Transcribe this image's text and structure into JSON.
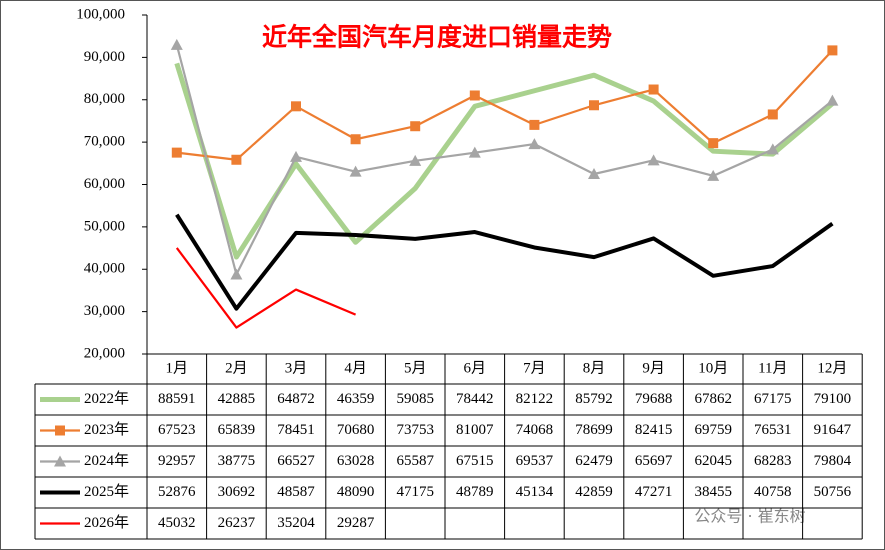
{
  "chart_data": {
    "type": "line",
    "title": "近年全国汽车月度进口销量走势",
    "categories": [
      "1月",
      "2月",
      "3月",
      "4月",
      "5月",
      "6月",
      "7月",
      "8月",
      "9月",
      "10月",
      "11月",
      "12月"
    ],
    "ylim": [
      20000,
      100000
    ],
    "yticks": [
      {
        "value": 20000,
        "label": "20,000"
      },
      {
        "value": 30000,
        "label": "30,000"
      },
      {
        "value": 40000,
        "label": "40,000"
      },
      {
        "value": 50000,
        "label": "50,000"
      },
      {
        "value": 60000,
        "label": "60,000"
      },
      {
        "value": 70000,
        "label": "70,000"
      },
      {
        "value": 80000,
        "label": "80,000"
      },
      {
        "value": 90000,
        "label": "90,000"
      },
      {
        "value": 100000,
        "label": "100,000"
      }
    ],
    "series": [
      {
        "name": "2022年",
        "color": "#a9d18e",
        "values": [
          88591,
          42885,
          64872,
          46359,
          59085,
          78442,
          82122,
          85792,
          79688,
          67862,
          67175,
          79100
        ]
      },
      {
        "name": "2023年",
        "color": "#ed7d31",
        "marker": "square",
        "values": [
          67523,
          65839,
          78451,
          70680,
          73753,
          81007,
          74068,
          78699,
          82415,
          69759,
          76531,
          91647
        ]
      },
      {
        "name": "2024年",
        "color": "#a5a5a5",
        "marker": "triangle",
        "values": [
          92957,
          38775,
          66527,
          63028,
          65587,
          67515,
          69537,
          62479,
          65697,
          62045,
          68283,
          79804
        ]
      },
      {
        "name": "2025年",
        "color": "#000000",
        "values": [
          52876,
          30692,
          48587,
          48090,
          47175,
          48789,
          45134,
          42859,
          47271,
          38455,
          40758,
          50756
        ]
      },
      {
        "name": "2026年",
        "color": "#ff0000",
        "values": [
          45032,
          26237,
          35204,
          29287,
          null,
          null,
          null,
          null,
          null,
          null,
          null,
          null
        ]
      }
    ],
    "watermark": "公众号 · 崔东树"
  }
}
